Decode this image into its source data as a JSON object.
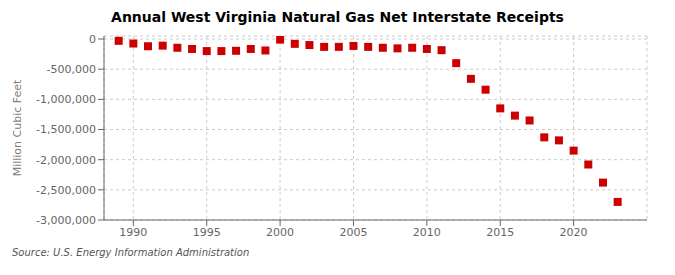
{
  "chart_data": {
    "type": "scatter",
    "title": "Annual West Virginia Natural Gas Net Interstate Receipts",
    "ylabel": "Million Cubic Feet",
    "annotations": [
      "Source: U.S. Energy Information Administration"
    ],
    "color": "#cc0000",
    "marker": "square",
    "grid": true,
    "xlim": [
      1988,
      2025
    ],
    "ylim": [
      -3000000,
      50000
    ],
    "xticks": [
      1990,
      1995,
      2000,
      2005,
      2010,
      2015,
      2020
    ],
    "yticks": [
      0,
      {
        "value": -500000,
        "label": "-500,000"
      },
      {
        "value": -1000000,
        "label": "-1,000,000"
      },
      {
        "value": -1500000,
        "label": "-1,500,000"
      },
      {
        "value": -2000000,
        "label": "-2,000,000"
      },
      {
        "value": -2500000,
        "label": "-2,500,000"
      },
      {
        "value": -3000000,
        "label": "-3,000,000"
      }
    ],
    "x": [
      1989,
      1990,
      1991,
      1992,
      1993,
      1994,
      1995,
      1996,
      1997,
      1998,
      1999,
      2000,
      2001,
      2002,
      2003,
      2004,
      2005,
      2006,
      2007,
      2008,
      2009,
      2010,
      2011,
      2012,
      2013,
      2014,
      2015,
      2016,
      2017,
      2018,
      2019,
      2020,
      2021,
      2022,
      2023
    ],
    "values": [
      -30000,
      -75000,
      -120000,
      -110000,
      -145000,
      -165000,
      -200000,
      -200000,
      -195000,
      -165000,
      -190000,
      -10000,
      -80000,
      -100000,
      -130000,
      -130000,
      -115000,
      -130000,
      -145000,
      -155000,
      -145000,
      -165000,
      -185000,
      -400000,
      -660000,
      -840000,
      -1150000,
      -1270000,
      -1350000,
      -1630000,
      -1680000,
      -1850000,
      -2080000,
      -2380000,
      -2700000
    ]
  }
}
